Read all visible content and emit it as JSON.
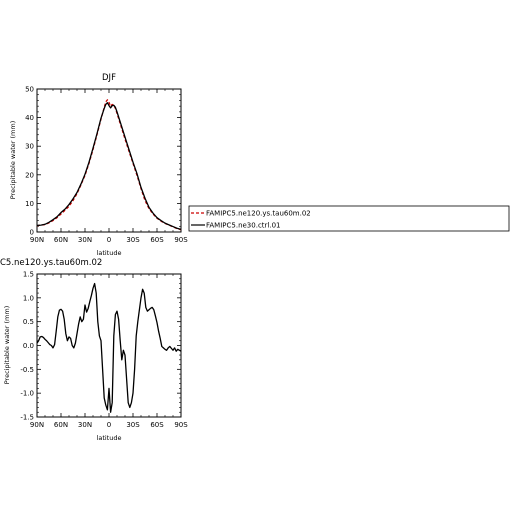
{
  "chart_data": [
    {
      "type": "line",
      "title": "DJF",
      "xlabel": "latitude",
      "ylabel": "Precipitable water (mm)",
      "xlim": [
        90,
        -90
      ],
      "ylim": [
        0,
        50
      ],
      "x_ticks": [
        90,
        60,
        30,
        0,
        -30,
        -60,
        -90
      ],
      "x_tick_labels": [
        "90N",
        "60N",
        "30N",
        "0",
        "30S",
        "60S",
        "90S"
      ],
      "y_ticks": [
        0,
        10,
        20,
        30,
        40,
        50
      ],
      "y_tick_labels": [
        "0",
        "10",
        "20",
        "30",
        "40",
        "50"
      ],
      "grid": false,
      "legend_position": "right, outside plot",
      "series": [
        {
          "name": "FAMIPC5.ne120.ys.tau60m.02",
          "color": "#cc0000",
          "dash": "dashed",
          "x": [
            90,
            85,
            80,
            75,
            70,
            65,
            60,
            55,
            50,
            45,
            40,
            35,
            30,
            25,
            20,
            15,
            10,
            6,
            4,
            2,
            0,
            -2,
            -4,
            -6,
            -8,
            -10,
            -15,
            -20,
            -25,
            -30,
            -35,
            -40,
            -45,
            -50,
            -55,
            -60,
            -65,
            -70,
            -75,
            -80,
            -85,
            -90
          ],
          "y": [
            2.2,
            2.4,
            2.6,
            3.2,
            4.0,
            5.0,
            6.3,
            7.6,
            9.0,
            11.0,
            13.4,
            16.5,
            19.8,
            24.0,
            28.8,
            34.0,
            39.5,
            43.5,
            45.5,
            46.2,
            45.3,
            44.0,
            44.6,
            44.4,
            43.2,
            41.5,
            37.0,
            32.5,
            28.2,
            24.0,
            19.8,
            15.2,
            11.0,
            8.2,
            6.3,
            4.8,
            3.8,
            3.0,
            2.4,
            1.8,
            1.2,
            0.8
          ]
        },
        {
          "name": "FAMIPC5.ne30.ctrl.01",
          "color": "#000000",
          "dash": "solid",
          "x": [
            90,
            85,
            80,
            75,
            70,
            65,
            60,
            55,
            50,
            45,
            40,
            35,
            30,
            25,
            20,
            15,
            10,
            6,
            4,
            2,
            0,
            -2,
            -4,
            -6,
            -8,
            -10,
            -15,
            -20,
            -25,
            -30,
            -35,
            -40,
            -45,
            -50,
            -55,
            -60,
            -65,
            -70,
            -75,
            -80,
            -85,
            -90
          ],
          "y": [
            2.3,
            2.4,
            2.7,
            3.4,
            4.3,
            5.3,
            6.8,
            8.0,
            9.6,
            11.6,
            13.8,
            16.8,
            20.2,
            24.4,
            29.3,
            34.4,
            39.8,
            43.2,
            44.6,
            45.2,
            44.2,
            43.4,
            44.2,
            44.3,
            43.6,
            42.0,
            37.6,
            33.2,
            28.8,
            24.4,
            20.4,
            15.6,
            11.8,
            8.6,
            6.6,
            5.0,
            4.0,
            3.1,
            2.5,
            1.9,
            1.3,
            0.9
          ]
        }
      ]
    },
    {
      "type": "line",
      "title": "C5.ne120.ys.tau60m.02",
      "xlabel": "latitude",
      "ylabel": "Precipitable water (mm)",
      "xlim": [
        90,
        -90
      ],
      "ylim": [
        -1.5,
        1.5
      ],
      "x_ticks": [
        90,
        60,
        30,
        0,
        -30,
        -60,
        -90
      ],
      "x_tick_labels": [
        "90N",
        "60N",
        "30N",
        "0",
        "30S",
        "60S",
        "90S"
      ],
      "y_ticks": [
        -1.5,
        -1.0,
        -0.5,
        0.0,
        0.5,
        1.0,
        1.5
      ],
      "y_tick_labels": [
        "-1.5",
        "-1.0",
        "-0.5",
        "0.0",
        "0.5",
        "1.0",
        "1.5"
      ],
      "grid": false,
      "series": [
        {
          "color": "#000000",
          "dash": "solid",
          "x": [
            90,
            88,
            86,
            84,
            82,
            80,
            78,
            76,
            74,
            72,
            70,
            68,
            66,
            64,
            62,
            60,
            58,
            56,
            54,
            52,
            50,
            48,
            46,
            44,
            42,
            40,
            38,
            36,
            34,
            32,
            30,
            28,
            26,
            24,
            22,
            20,
            18,
            16,
            14,
            12,
            10,
            8,
            6,
            4,
            2,
            0,
            -2,
            -4,
            -6,
            -8,
            -10,
            -12,
            -14,
            -16,
            -18,
            -20,
            -22,
            -24,
            -26,
            -28,
            -30,
            -32,
            -34,
            -36,
            -38,
            -40,
            -42,
            -44,
            -46,
            -48,
            -50,
            -52,
            -54,
            -56,
            -58,
            -60,
            -62,
            -64,
            -66,
            -68,
            -70,
            -72,
            -74,
            -76,
            -78,
            -80,
            -82,
            -84,
            -86,
            -88,
            -90
          ],
          "y": [
            0.05,
            0.1,
            0.18,
            0.19,
            0.17,
            0.13,
            0.1,
            0.06,
            0.02,
            0.0,
            -0.05,
            0.02,
            0.3,
            0.6,
            0.74,
            0.76,
            0.72,
            0.55,
            0.25,
            0.1,
            0.18,
            0.15,
            0.0,
            -0.05,
            0.05,
            0.25,
            0.45,
            0.6,
            0.5,
            0.55,
            0.85,
            0.7,
            0.78,
            0.92,
            1.05,
            1.2,
            1.3,
            1.1,
            0.5,
            0.2,
            0.1,
            -0.5,
            -1.1,
            -1.25,
            -1.35,
            -0.9,
            -1.4,
            -1.2,
            0.2,
            0.65,
            0.72,
            0.55,
            0.1,
            -0.3,
            -0.1,
            -0.2,
            -0.7,
            -1.2,
            -1.3,
            -1.2,
            -1.0,
            -0.5,
            0.2,
            0.5,
            0.75,
            1.0,
            1.18,
            1.1,
            0.8,
            0.72,
            0.75,
            0.78,
            0.8,
            0.75,
            0.62,
            0.48,
            0.3,
            0.15,
            -0.02,
            -0.05,
            -0.08,
            -0.1,
            -0.05,
            -0.02,
            -0.06,
            -0.1,
            -0.05,
            -0.12,
            -0.08,
            -0.1,
            -0.12
          ]
        }
      ]
    }
  ]
}
